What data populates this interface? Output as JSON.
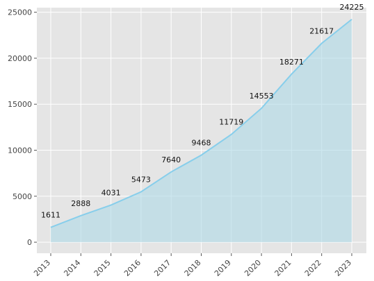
{
  "chart_data": {
    "type": "area",
    "title": "",
    "xlabel": "",
    "ylabel": "",
    "categories": [
      "2013",
      "2014",
      "2015",
      "2016",
      "2017",
      "2018",
      "2019",
      "2020",
      "2021",
      "2022",
      "2023"
    ],
    "values": [
      1611,
      2888,
      4031,
      5473,
      7640,
      9468,
      11719,
      14553,
      18271,
      21617,
      24225
    ],
    "ylim": [
      -1200,
      25500
    ],
    "yticks": [
      0,
      5000,
      10000,
      15000,
      20000,
      25000
    ],
    "grid": true,
    "legend": "none",
    "colors": {
      "line": "#87ceeb",
      "fill": "#add8e6",
      "plot_background": "#e5e5e5",
      "grid": "#ffffff"
    }
  }
}
